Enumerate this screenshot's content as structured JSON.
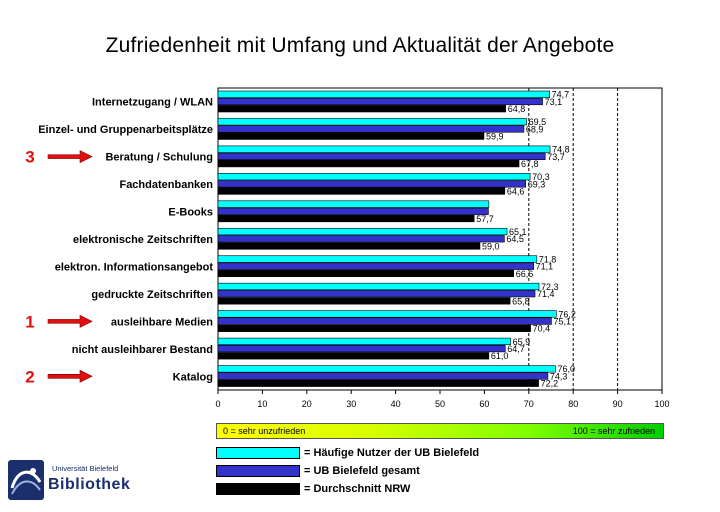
{
  "title": "Zufriedenheit mit Umfang und Aktualität der Angebote",
  "chart_data": {
    "type": "bar",
    "orientation": "horizontal",
    "categories": [
      "Internetzugang / WLAN",
      "Einzel- und Gruppenarbeitsplätze",
      "Beratung / Schulung",
      "Fachdatenbanken",
      "E-Books",
      "elektronische Zeitschriften",
      "elektron. Informationsangebot",
      "gedruckte Zeitschriften",
      "ausleihbare Medien",
      "nicht ausleihbarer Bestand",
      "Katalog"
    ],
    "series": [
      {
        "name": "= Häufige Nutzer der UB Bielefeld",
        "color": "#00ffff",
        "values": [
          74.7,
          69.5,
          74.8,
          70.3,
          61.0,
          65.1,
          71.8,
          72.3,
          76.2,
          65.9,
          76.0
        ],
        "labels": [
          "74,7",
          "69,5",
          "74,8",
          "70,3",
          "",
          "65,1",
          "71,8",
          "72,3",
          "76,2",
          "65,9",
          "76,0"
        ]
      },
      {
        "name": "= UB Bielefeld gesamt",
        "color": "#3333cc",
        "values": [
          73.1,
          68.9,
          73.7,
          69.3,
          60.9,
          64.5,
          71.1,
          71.4,
          75.1,
          64.7,
          74.3
        ],
        "labels": [
          "73,1",
          "68,9",
          "73,7",
          "69,3",
          "",
          "64,5",
          "71,1",
          "71,4",
          "75,1",
          "64,7",
          "74,3"
        ]
      },
      {
        "name": "= Durchschnitt NRW",
        "color": "#000000",
        "values": [
          64.8,
          59.9,
          67.8,
          64.6,
          57.7,
          59.0,
          66.6,
          65.8,
          70.4,
          61.0,
          72.2
        ],
        "labels": [
          "64,8",
          "59,9",
          "67,8",
          "64,6",
          "57,7",
          "59,0",
          "66,6",
          "65,8",
          "70,4",
          "61,0",
          "72,2"
        ]
      }
    ],
    "xlim": [
      0,
      100
    ],
    "xticks": [
      "0",
      "10",
      "20",
      "30",
      "40",
      "50",
      "60",
      "70",
      "80",
      "90",
      "100"
    ],
    "reference_lines": [
      70,
      80,
      90
    ],
    "scale_bar": {
      "left": "0 = sehr unzufrieden",
      "right": "100 = sehr zufrieden"
    },
    "ranking_markers": [
      {
        "category": "Beratung / Schulung",
        "number": "3"
      },
      {
        "category": "ausleihbare Medien",
        "number": "1"
      },
      {
        "category": "Katalog",
        "number": "2"
      }
    ],
    "marker_color": "#e01010"
  },
  "logo": {
    "university": "Universität Bielefeld",
    "name": "Bibliothek"
  }
}
